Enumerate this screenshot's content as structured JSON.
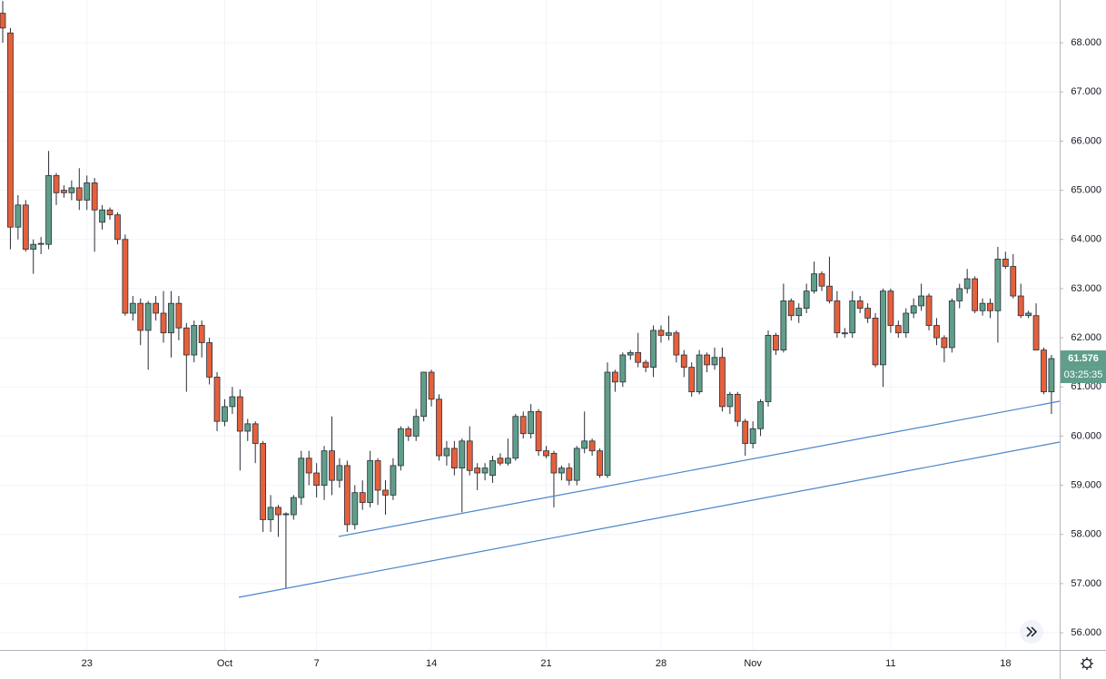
{
  "chart_data": {
    "type": "candlestick",
    "up_color": "#5f9e8a",
    "down_color": "#e5603b",
    "wick_color": "#2a2e39",
    "grid": true,
    "ylim": [
      55.65,
      68.87
    ],
    "yticks": [
      {
        "value": 56,
        "label": "56.000"
      },
      {
        "value": 57,
        "label": "57.000"
      },
      {
        "value": 58,
        "label": "58.000"
      },
      {
        "value": 59,
        "label": "59.000"
      },
      {
        "value": 60,
        "label": "60.000"
      },
      {
        "value": 61,
        "label": "61.000"
      },
      {
        "value": 62,
        "label": "62.000"
      },
      {
        "value": 63,
        "label": "63.000"
      },
      {
        "value": 64,
        "label": "64.000"
      },
      {
        "value": 65,
        "label": "65.000"
      },
      {
        "value": 66,
        "label": "66.000"
      },
      {
        "value": 67,
        "label": "67.000"
      },
      {
        "value": 68,
        "label": "68.000"
      }
    ],
    "last_price": {
      "value": 61.576,
      "label": "61.576"
    },
    "countdown": "03:25:35",
    "categories": [
      null,
      null,
      null,
      null,
      null,
      null,
      null,
      null,
      null,
      null,
      null,
      "23",
      null,
      null,
      null,
      null,
      null,
      null,
      null,
      null,
      null,
      null,
      null,
      null,
      null,
      null,
      null,
      null,
      null,
      "Oct",
      null,
      null,
      null,
      null,
      null,
      null,
      null,
      null,
      null,
      null,
      null,
      "7",
      null,
      null,
      null,
      null,
      null,
      null,
      null,
      null,
      null,
      null,
      null,
      null,
      null,
      null,
      "14",
      null,
      null,
      null,
      null,
      null,
      null,
      null,
      null,
      null,
      null,
      null,
      null,
      null,
      null,
      "21",
      null,
      null,
      null,
      null,
      null,
      null,
      null,
      null,
      null,
      null,
      null,
      null,
      null,
      null,
      "28",
      null,
      null,
      null,
      null,
      null,
      null,
      null,
      null,
      null,
      null,
      null,
      "Nov",
      null,
      null,
      null,
      null,
      null,
      null,
      null,
      null,
      null,
      null,
      null,
      null,
      null,
      null,
      null,
      null,
      null,
      "11",
      null,
      null,
      null,
      null,
      null,
      null,
      null,
      null,
      null,
      null,
      null,
      null,
      null,
      null,
      "18",
      null,
      null,
      null,
      null,
      null,
      null
    ],
    "ohlc": [
      [
        68.6,
        68.85,
        68.0,
        68.3
      ],
      [
        68.2,
        68.3,
        63.8,
        64.25
      ],
      [
        64.25,
        64.9,
        64.0,
        64.7
      ],
      [
        64.7,
        64.8,
        63.75,
        63.8
      ],
      [
        63.8,
        64.0,
        63.3,
        63.9
      ],
      [
        63.9,
        64.05,
        63.7,
        63.92
      ],
      [
        63.9,
        65.8,
        63.8,
        65.3
      ],
      [
        65.3,
        65.35,
        64.7,
        64.95
      ],
      [
        65.0,
        65.1,
        64.85,
        64.95
      ],
      [
        64.95,
        65.2,
        64.8,
        65.05
      ],
      [
        65.05,
        65.45,
        64.6,
        64.8
      ],
      [
        64.8,
        65.3,
        64.6,
        65.15
      ],
      [
        65.15,
        65.25,
        63.75,
        64.6
      ],
      [
        64.35,
        64.7,
        64.2,
        64.6
      ],
      [
        64.6,
        64.65,
        64.4,
        64.5
      ],
      [
        64.5,
        64.55,
        63.9,
        64.0
      ],
      [
        64.0,
        64.1,
        62.45,
        62.5
      ],
      [
        62.5,
        62.85,
        62.35,
        62.7
      ],
      [
        62.7,
        62.8,
        61.85,
        62.15
      ],
      [
        62.15,
        62.75,
        61.35,
        62.7
      ],
      [
        62.7,
        62.85,
        62.35,
        62.5
      ],
      [
        62.5,
        62.95,
        61.9,
        62.1
      ],
      [
        62.1,
        62.95,
        61.6,
        62.7
      ],
      [
        62.7,
        62.85,
        61.95,
        62.2
      ],
      [
        62.2,
        62.3,
        60.9,
        61.65
      ],
      [
        61.65,
        62.35,
        61.5,
        62.25
      ],
      [
        62.25,
        62.35,
        61.6,
        61.9
      ],
      [
        61.9,
        62.0,
        61.05,
        61.2
      ],
      [
        61.2,
        61.3,
        60.1,
        60.3
      ],
      [
        60.3,
        60.75,
        60.2,
        60.6
      ],
      [
        60.6,
        61.0,
        60.45,
        60.8
      ],
      [
        60.8,
        60.95,
        59.3,
        60.1
      ],
      [
        60.1,
        60.35,
        59.9,
        60.25
      ],
      [
        60.25,
        60.3,
        59.45,
        59.85
      ],
      [
        59.85,
        59.9,
        58.05,
        58.3
      ],
      [
        58.3,
        58.8,
        58.05,
        58.55
      ],
      [
        58.55,
        58.6,
        57.95,
        58.4
      ],
      [
        58.4,
        58.45,
        56.9,
        58.42
      ],
      [
        58.4,
        58.8,
        58.3,
        58.75
      ],
      [
        58.75,
        59.7,
        58.6,
        59.55
      ],
      [
        59.55,
        59.7,
        59.0,
        59.25
      ],
      [
        59.25,
        59.45,
        58.75,
        59.0
      ],
      [
        59.0,
        59.8,
        58.7,
        59.7
      ],
      [
        59.7,
        60.4,
        58.8,
        59.1
      ],
      [
        59.1,
        59.55,
        58.95,
        59.4
      ],
      [
        59.4,
        59.5,
        58.05,
        58.2
      ],
      [
        58.2,
        59.0,
        58.1,
        58.85
      ],
      [
        58.85,
        59.1,
        58.5,
        58.65
      ],
      [
        58.65,
        59.7,
        58.55,
        59.5
      ],
      [
        59.5,
        59.55,
        58.6,
        58.9
      ],
      [
        58.9,
        59.1,
        58.4,
        58.8
      ],
      [
        58.8,
        59.55,
        58.7,
        59.4
      ],
      [
        59.4,
        60.2,
        59.3,
        60.15
      ],
      [
        60.15,
        60.2,
        59.9,
        60.0
      ],
      [
        60.0,
        60.55,
        59.9,
        60.4
      ],
      [
        60.4,
        61.3,
        60.3,
        61.3
      ],
      [
        61.3,
        61.35,
        60.6,
        60.75
      ],
      [
        60.75,
        60.85,
        59.5,
        59.6
      ],
      [
        59.6,
        59.9,
        59.4,
        59.75
      ],
      [
        59.75,
        59.9,
        59.2,
        59.35
      ],
      [
        59.35,
        59.95,
        58.45,
        59.9
      ],
      [
        59.9,
        60.2,
        59.2,
        59.3
      ],
      [
        59.35,
        59.45,
        58.9,
        59.25
      ],
      [
        59.25,
        59.45,
        59.1,
        59.35
      ],
      [
        59.2,
        59.6,
        59.05,
        59.5
      ],
      [
        59.55,
        59.65,
        59.4,
        59.45
      ],
      [
        59.45,
        59.95,
        59.4,
        59.55
      ],
      [
        59.55,
        60.45,
        59.5,
        60.4
      ],
      [
        60.4,
        60.5,
        59.95,
        60.05
      ],
      [
        60.05,
        60.65,
        59.95,
        60.5
      ],
      [
        60.5,
        60.55,
        59.6,
        59.7
      ],
      [
        59.7,
        59.8,
        59.55,
        59.6
      ],
      [
        59.65,
        59.7,
        58.55,
        59.25
      ],
      [
        59.25,
        59.4,
        59.1,
        59.35
      ],
      [
        59.35,
        59.45,
        59.0,
        59.1
      ],
      [
        59.1,
        59.8,
        59.0,
        59.75
      ],
      [
        59.75,
        60.5,
        59.65,
        59.9
      ],
      [
        59.9,
        59.95,
        59.6,
        59.7
      ],
      [
        59.7,
        59.75,
        59.15,
        59.2
      ],
      [
        59.2,
        61.5,
        59.15,
        61.3
      ],
      [
        61.3,
        61.35,
        60.9,
        61.1
      ],
      [
        61.1,
        61.7,
        61.0,
        61.65
      ],
      [
        61.65,
        61.75,
        61.55,
        61.7
      ],
      [
        61.7,
        62.1,
        61.4,
        61.5
      ],
      [
        61.5,
        61.55,
        61.3,
        61.4
      ],
      [
        61.4,
        62.25,
        61.2,
        62.15
      ],
      [
        62.15,
        62.25,
        61.9,
        62.05
      ],
      [
        62.05,
        62.45,
        61.95,
        62.1
      ],
      [
        62.1,
        62.15,
        61.5,
        61.65
      ],
      [
        61.65,
        61.75,
        61.2,
        61.4
      ],
      [
        61.4,
        61.5,
        60.8,
        60.9
      ],
      [
        60.9,
        61.75,
        60.85,
        61.65
      ],
      [
        61.65,
        61.7,
        61.3,
        61.45
      ],
      [
        61.45,
        61.8,
        61.35,
        61.6
      ],
      [
        61.6,
        61.8,
        60.5,
        60.6
      ],
      [
        60.6,
        60.9,
        60.45,
        60.85
      ],
      [
        60.85,
        60.9,
        60.2,
        60.3
      ],
      [
        60.3,
        60.35,
        59.6,
        59.85
      ],
      [
        59.85,
        60.3,
        59.75,
        60.15
      ],
      [
        60.15,
        60.75,
        60.0,
        60.7
      ],
      [
        60.7,
        62.15,
        60.6,
        62.05
      ],
      [
        62.05,
        62.1,
        61.65,
        61.75
      ],
      [
        61.75,
        63.1,
        61.7,
        62.75
      ],
      [
        62.75,
        62.8,
        62.35,
        62.45
      ],
      [
        62.45,
        62.7,
        62.3,
        62.6
      ],
      [
        62.6,
        63.1,
        62.5,
        62.95
      ],
      [
        62.95,
        63.55,
        62.9,
        63.3
      ],
      [
        63.3,
        63.35,
        62.95,
        63.05
      ],
      [
        63.05,
        63.65,
        62.7,
        62.75
      ],
      [
        62.75,
        62.95,
        62.0,
        62.1
      ],
      [
        62.1,
        62.2,
        62.0,
        62.08
      ],
      [
        62.1,
        62.95,
        62.0,
        62.75
      ],
      [
        62.75,
        62.85,
        62.5,
        62.6
      ],
      [
        62.6,
        62.7,
        62.3,
        62.4
      ],
      [
        62.4,
        62.5,
        61.4,
        61.45
      ],
      [
        61.45,
        63.0,
        61.0,
        62.95
      ],
      [
        62.95,
        63.0,
        62.1,
        62.25
      ],
      [
        62.25,
        62.35,
        62.0,
        62.1
      ],
      [
        62.1,
        62.6,
        62.0,
        62.5
      ],
      [
        62.5,
        62.8,
        62.4,
        62.65
      ],
      [
        62.65,
        63.1,
        62.55,
        62.85
      ],
      [
        62.85,
        62.9,
        62.15,
        62.25
      ],
      [
        62.25,
        62.4,
        61.85,
        62.0
      ],
      [
        62.0,
        62.05,
        61.5,
        61.8
      ],
      [
        61.8,
        62.8,
        61.7,
        62.75
      ],
      [
        62.75,
        63.1,
        62.6,
        63.0
      ],
      [
        63.0,
        63.4,
        62.9,
        63.2
      ],
      [
        63.2,
        63.25,
        62.5,
        62.55
      ],
      [
        62.55,
        62.8,
        62.45,
        62.7
      ],
      [
        62.7,
        62.8,
        62.4,
        62.55
      ],
      [
        62.55,
        63.85,
        61.9,
        63.6
      ],
      [
        63.6,
        63.75,
        63.4,
        63.45
      ],
      [
        63.45,
        63.7,
        62.8,
        62.85
      ],
      [
        62.85,
        63.1,
        62.4,
        62.45
      ],
      [
        62.45,
        62.55,
        62.4,
        62.5
      ],
      [
        62.45,
        62.7,
        61.75,
        61.75
      ],
      [
        61.75,
        61.8,
        60.85,
        60.9
      ],
      [
        60.9,
        61.65,
        60.45,
        61.576
      ]
    ]
  }
}
